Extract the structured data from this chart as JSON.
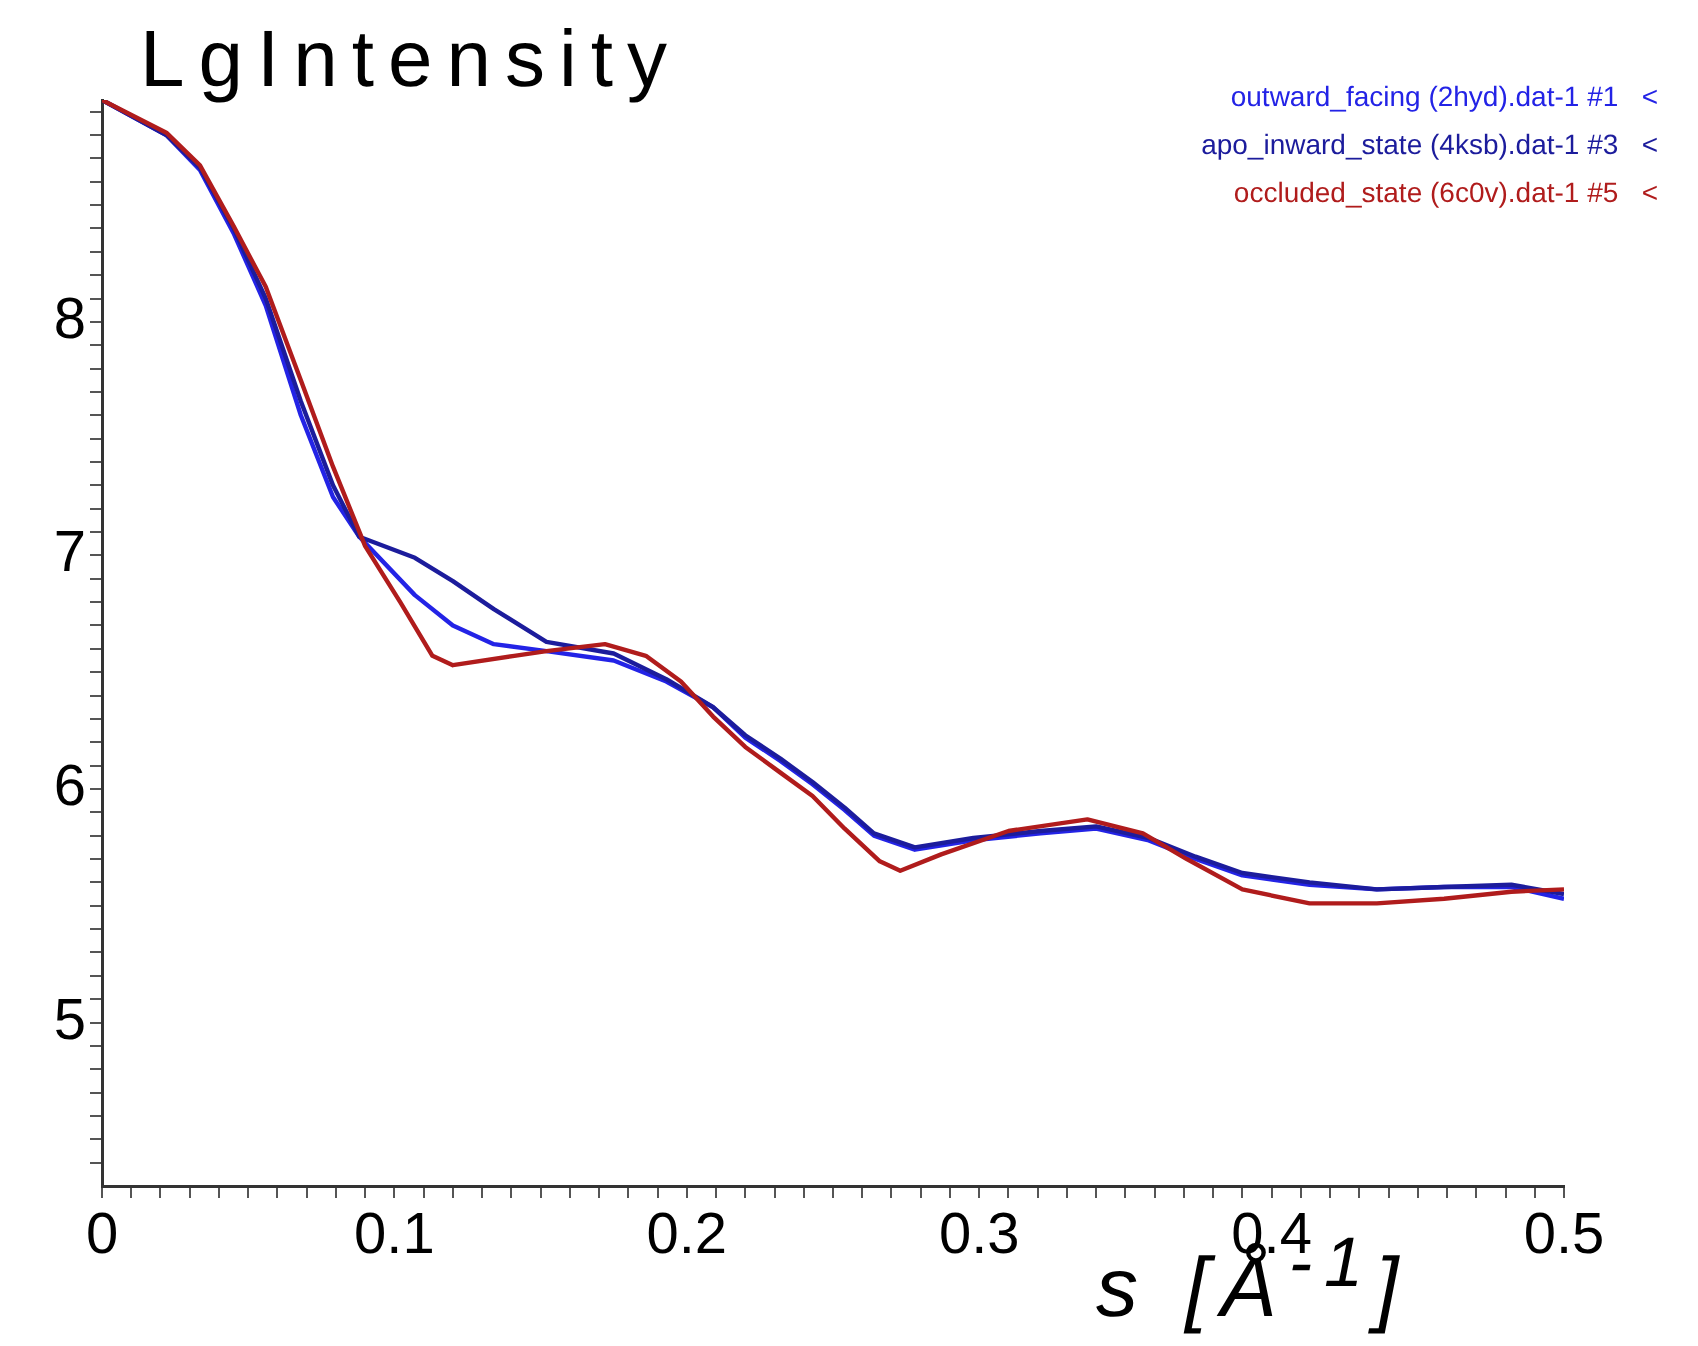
{
  "chart_data": {
    "type": "line",
    "ylabel": "LgIntensity",
    "xlabel": "s [Å$^{-1}$]",
    "legend": "top right",
    "grid": false,
    "marker": "none",
    "line_style": "solid",
    "xlim": [
      0,
      0.5
    ],
    "ylim": [
      4.3,
      8.95
    ],
    "xticks": [
      0,
      {
        "value": 0.01,
        "label": null
      },
      {
        "value": 0.02,
        "label": null
      },
      {
        "value": 0.03,
        "label": null
      },
      {
        "value": 0.04,
        "label": null
      },
      {
        "value": 0.05,
        "label": null
      },
      {
        "value": 0.06,
        "label": null
      },
      {
        "value": 0.07,
        "label": null
      },
      {
        "value": 0.08,
        "label": null
      },
      {
        "value": 0.09,
        "label": null
      },
      0.1,
      {
        "value": 0.11,
        "label": null
      },
      {
        "value": 0.12,
        "label": null
      },
      {
        "value": 0.13,
        "label": null
      },
      {
        "value": 0.14,
        "label": null
      },
      {
        "value": 0.15,
        "label": null
      },
      {
        "value": 0.16,
        "label": null
      },
      {
        "value": 0.17,
        "label": null
      },
      {
        "value": 0.18,
        "label": null
      },
      {
        "value": 0.19,
        "label": null
      },
      0.2,
      {
        "value": 0.21,
        "label": null
      },
      {
        "value": 0.22,
        "label": null
      },
      {
        "value": 0.23,
        "label": null
      },
      {
        "value": 0.24,
        "label": null
      },
      {
        "value": 0.25,
        "label": null
      },
      {
        "value": 0.26,
        "label": null
      },
      {
        "value": 0.27,
        "label": null
      },
      {
        "value": 0.28,
        "label": null
      },
      {
        "value": 0.29,
        "label": null
      },
      0.3,
      {
        "value": 0.31,
        "label": null
      },
      {
        "value": 0.32,
        "label": null
      },
      {
        "value": 0.33,
        "label": null
      },
      {
        "value": 0.34,
        "label": null
      },
      {
        "value": 0.35,
        "label": null
      },
      {
        "value": 0.36,
        "label": null
      },
      {
        "value": 0.37,
        "label": null
      },
      {
        "value": 0.38,
        "label": null
      },
      {
        "value": 0.39,
        "label": null
      },
      0.4,
      {
        "value": 0.41,
        "label": null
      },
      {
        "value": 0.42,
        "label": null
      },
      {
        "value": 0.43,
        "label": null
      },
      {
        "value": 0.44,
        "label": null
      },
      {
        "value": 0.45,
        "label": null
      },
      {
        "value": 0.46,
        "label": null
      },
      {
        "value": 0.47,
        "label": null
      },
      {
        "value": 0.48,
        "label": null
      },
      {
        "value": 0.49,
        "label": null
      },
      0.5
    ],
    "yticks": [
      {
        "value": 4.4,
        "label": null
      },
      {
        "value": 4.5,
        "label": null
      },
      {
        "value": 4.6,
        "label": null
      },
      {
        "value": 4.7,
        "label": null
      },
      {
        "value": 4.8,
        "label": null
      },
      {
        "value": 4.9,
        "label": null
      },
      5,
      {
        "value": 5.1,
        "label": null
      },
      {
        "value": 5.2,
        "label": null
      },
      {
        "value": 5.3,
        "label": null
      },
      {
        "value": 5.4,
        "label": null
      },
      {
        "value": 5.5,
        "label": null
      },
      {
        "value": 5.6,
        "label": null
      },
      {
        "value": 5.7,
        "label": null
      },
      {
        "value": 5.8,
        "label": null
      },
      {
        "value": 5.9,
        "label": null
      },
      6,
      {
        "value": 6.1,
        "label": null
      },
      {
        "value": 6.2,
        "label": null
      },
      {
        "value": 6.3,
        "label": null
      },
      {
        "value": 6.4,
        "label": null
      },
      {
        "value": 6.5,
        "label": null
      },
      {
        "value": 6.6,
        "label": null
      },
      {
        "value": 6.7,
        "label": null
      },
      {
        "value": 6.8,
        "label": null
      },
      {
        "value": 6.9,
        "label": null
      },
      7,
      {
        "value": 7.1,
        "label": null
      },
      {
        "value": 7.2,
        "label": null
      },
      {
        "value": 7.3,
        "label": null
      },
      {
        "value": 7.4,
        "label": null
      },
      {
        "value": 7.5,
        "label": null
      },
      {
        "value": 7.6,
        "label": null
      },
      {
        "value": 7.7,
        "label": null
      },
      {
        "value": 7.8,
        "label": null
      },
      {
        "value": 7.9,
        "label": null
      },
      8,
      {
        "value": 8.1,
        "label": null
      },
      {
        "value": 8.2,
        "label": null
      },
      {
        "value": 8.3,
        "label": null
      },
      {
        "value": 8.4,
        "label": null
      },
      {
        "value": 8.5,
        "label": null
      },
      {
        "value": 8.6,
        "label": null
      },
      {
        "value": 8.7,
        "label": null
      },
      {
        "value": 8.8,
        "label": null
      },
      {
        "value": 8.9,
        "label": null
      }
    ],
    "series": [
      {
        "name": "outward_facing (2hyd).dat-1 #1   <",
        "color": "#2323e6",
        "x": [
          0,
          0.022,
          0.0335,
          0.045,
          0.056,
          0.068,
          0.079,
          0.088,
          0.107,
          0.12,
          0.134,
          0.152,
          0.175,
          0.193,
          0.209,
          0.22,
          0.232,
          0.243,
          0.254,
          0.264,
          0.278,
          0.298,
          0.321,
          0.34,
          0.358,
          0.374,
          0.39,
          0.413,
          0.436,
          0.459,
          0.482,
          0.5
        ],
        "values": [
          8.95,
          8.8,
          8.65,
          8.38,
          8.07,
          7.6,
          7.25,
          7.08,
          6.83,
          6.7,
          6.62,
          6.59,
          6.55,
          6.46,
          6.35,
          6.22,
          6.12,
          6.02,
          5.91,
          5.8,
          5.74,
          5.78,
          5.81,
          5.83,
          5.78,
          5.7,
          5.63,
          5.59,
          5.57,
          5.58,
          5.58,
          5.53
        ]
      },
      {
        "name": "apo_inward_state (4ksb).dat-1 #3   <",
        "color": "#1c1c9c",
        "x": [
          0,
          0.022,
          0.0335,
          0.045,
          0.056,
          0.068,
          0.079,
          0.088,
          0.107,
          0.12,
          0.134,
          0.152,
          0.175,
          0.193,
          0.209,
          0.22,
          0.232,
          0.243,
          0.254,
          0.264,
          0.278,
          0.298,
          0.321,
          0.34,
          0.358,
          0.374,
          0.39,
          0.413,
          0.436,
          0.459,
          0.482,
          0.5
        ],
        "values": [
          8.95,
          8.8,
          8.66,
          8.4,
          8.1,
          7.66,
          7.3,
          7.08,
          6.99,
          6.89,
          6.77,
          6.63,
          6.58,
          6.47,
          6.35,
          6.23,
          6.13,
          6.03,
          5.92,
          5.81,
          5.75,
          5.79,
          5.82,
          5.84,
          5.79,
          5.71,
          5.64,
          5.6,
          5.57,
          5.58,
          5.59,
          5.55
        ]
      },
      {
        "name": "occluded_state (6c0v).dat-1 #5   <",
        "color": "#b01c1c",
        "x": [
          0,
          0.022,
          0.0335,
          0.045,
          0.056,
          0.068,
          0.079,
          0.09,
          0.102,
          0.113,
          0.12,
          0.141,
          0.152,
          0.172,
          0.186,
          0.198,
          0.209,
          0.22,
          0.232,
          0.243,
          0.254,
          0.266,
          0.273,
          0.287,
          0.31,
          0.337,
          0.356,
          0.371,
          0.39,
          0.413,
          0.436,
          0.459,
          0.482,
          0.5
        ],
        "values": [
          8.95,
          8.81,
          8.67,
          8.41,
          8.15,
          7.75,
          7.38,
          7.04,
          6.8,
          6.57,
          6.53,
          6.57,
          6.59,
          6.62,
          6.57,
          6.46,
          6.31,
          6.18,
          6.07,
          5.97,
          5.83,
          5.69,
          5.65,
          5.72,
          5.82,
          5.87,
          5.81,
          5.7,
          5.57,
          5.51,
          5.51,
          5.53,
          5.56,
          5.57
        ]
      }
    ]
  }
}
